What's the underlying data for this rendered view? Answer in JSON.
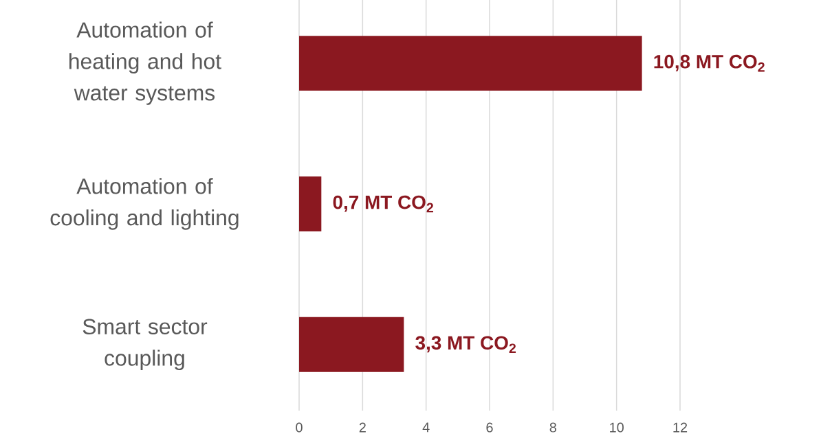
{
  "chart_data": {
    "type": "bar",
    "orientation": "horizontal",
    "categories": [
      "Automation of heating and hot water systems",
      "Automation of cooling and lighting",
      "Smart sector coupling"
    ],
    "values": [
      10.8,
      0.7,
      3.3
    ],
    "value_labels": [
      "10,8 MT CO$_{2}$",
      "0,7 MT CO$_{2}$",
      "3,3 MT CO$_{2}$"
    ],
    "color": "#8b1820",
    "xlim": [
      0,
      12
    ],
    "xticks": [
      0,
      2,
      4,
      6,
      8,
      10,
      12
    ],
    "grid": "x"
  }
}
